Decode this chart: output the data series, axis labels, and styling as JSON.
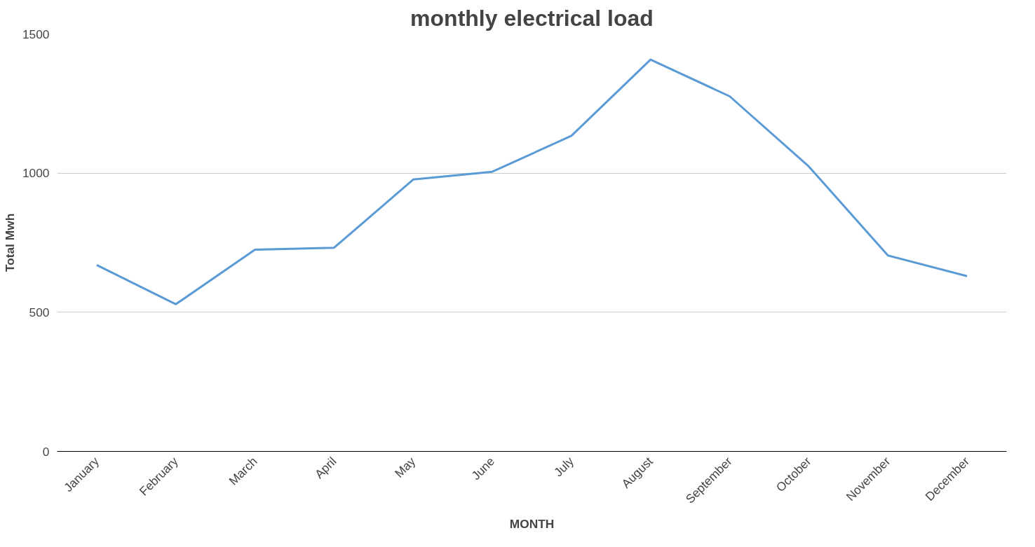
{
  "chart_data": {
    "type": "line",
    "title": "monthly electrical load",
    "xlabel": "MONTH",
    "ylabel": "Total Mwh",
    "categories": [
      "January",
      "February",
      "March",
      "April",
      "May",
      "June",
      "July",
      "August",
      "September",
      "October",
      "November",
      "December"
    ],
    "series": [
      {
        "color": "#5b9bd5",
        "values": [
          670,
          529,
          725,
          732,
          977,
          1005,
          1134,
          1408,
          1276,
          1024,
          704,
          630
        ]
      }
    ],
    "ylim": [
      0,
      1500
    ],
    "yticks": [
      0,
      500,
      1000,
      1500
    ],
    "grid": "y",
    "marker": "none",
    "line_style": "solid"
  }
}
